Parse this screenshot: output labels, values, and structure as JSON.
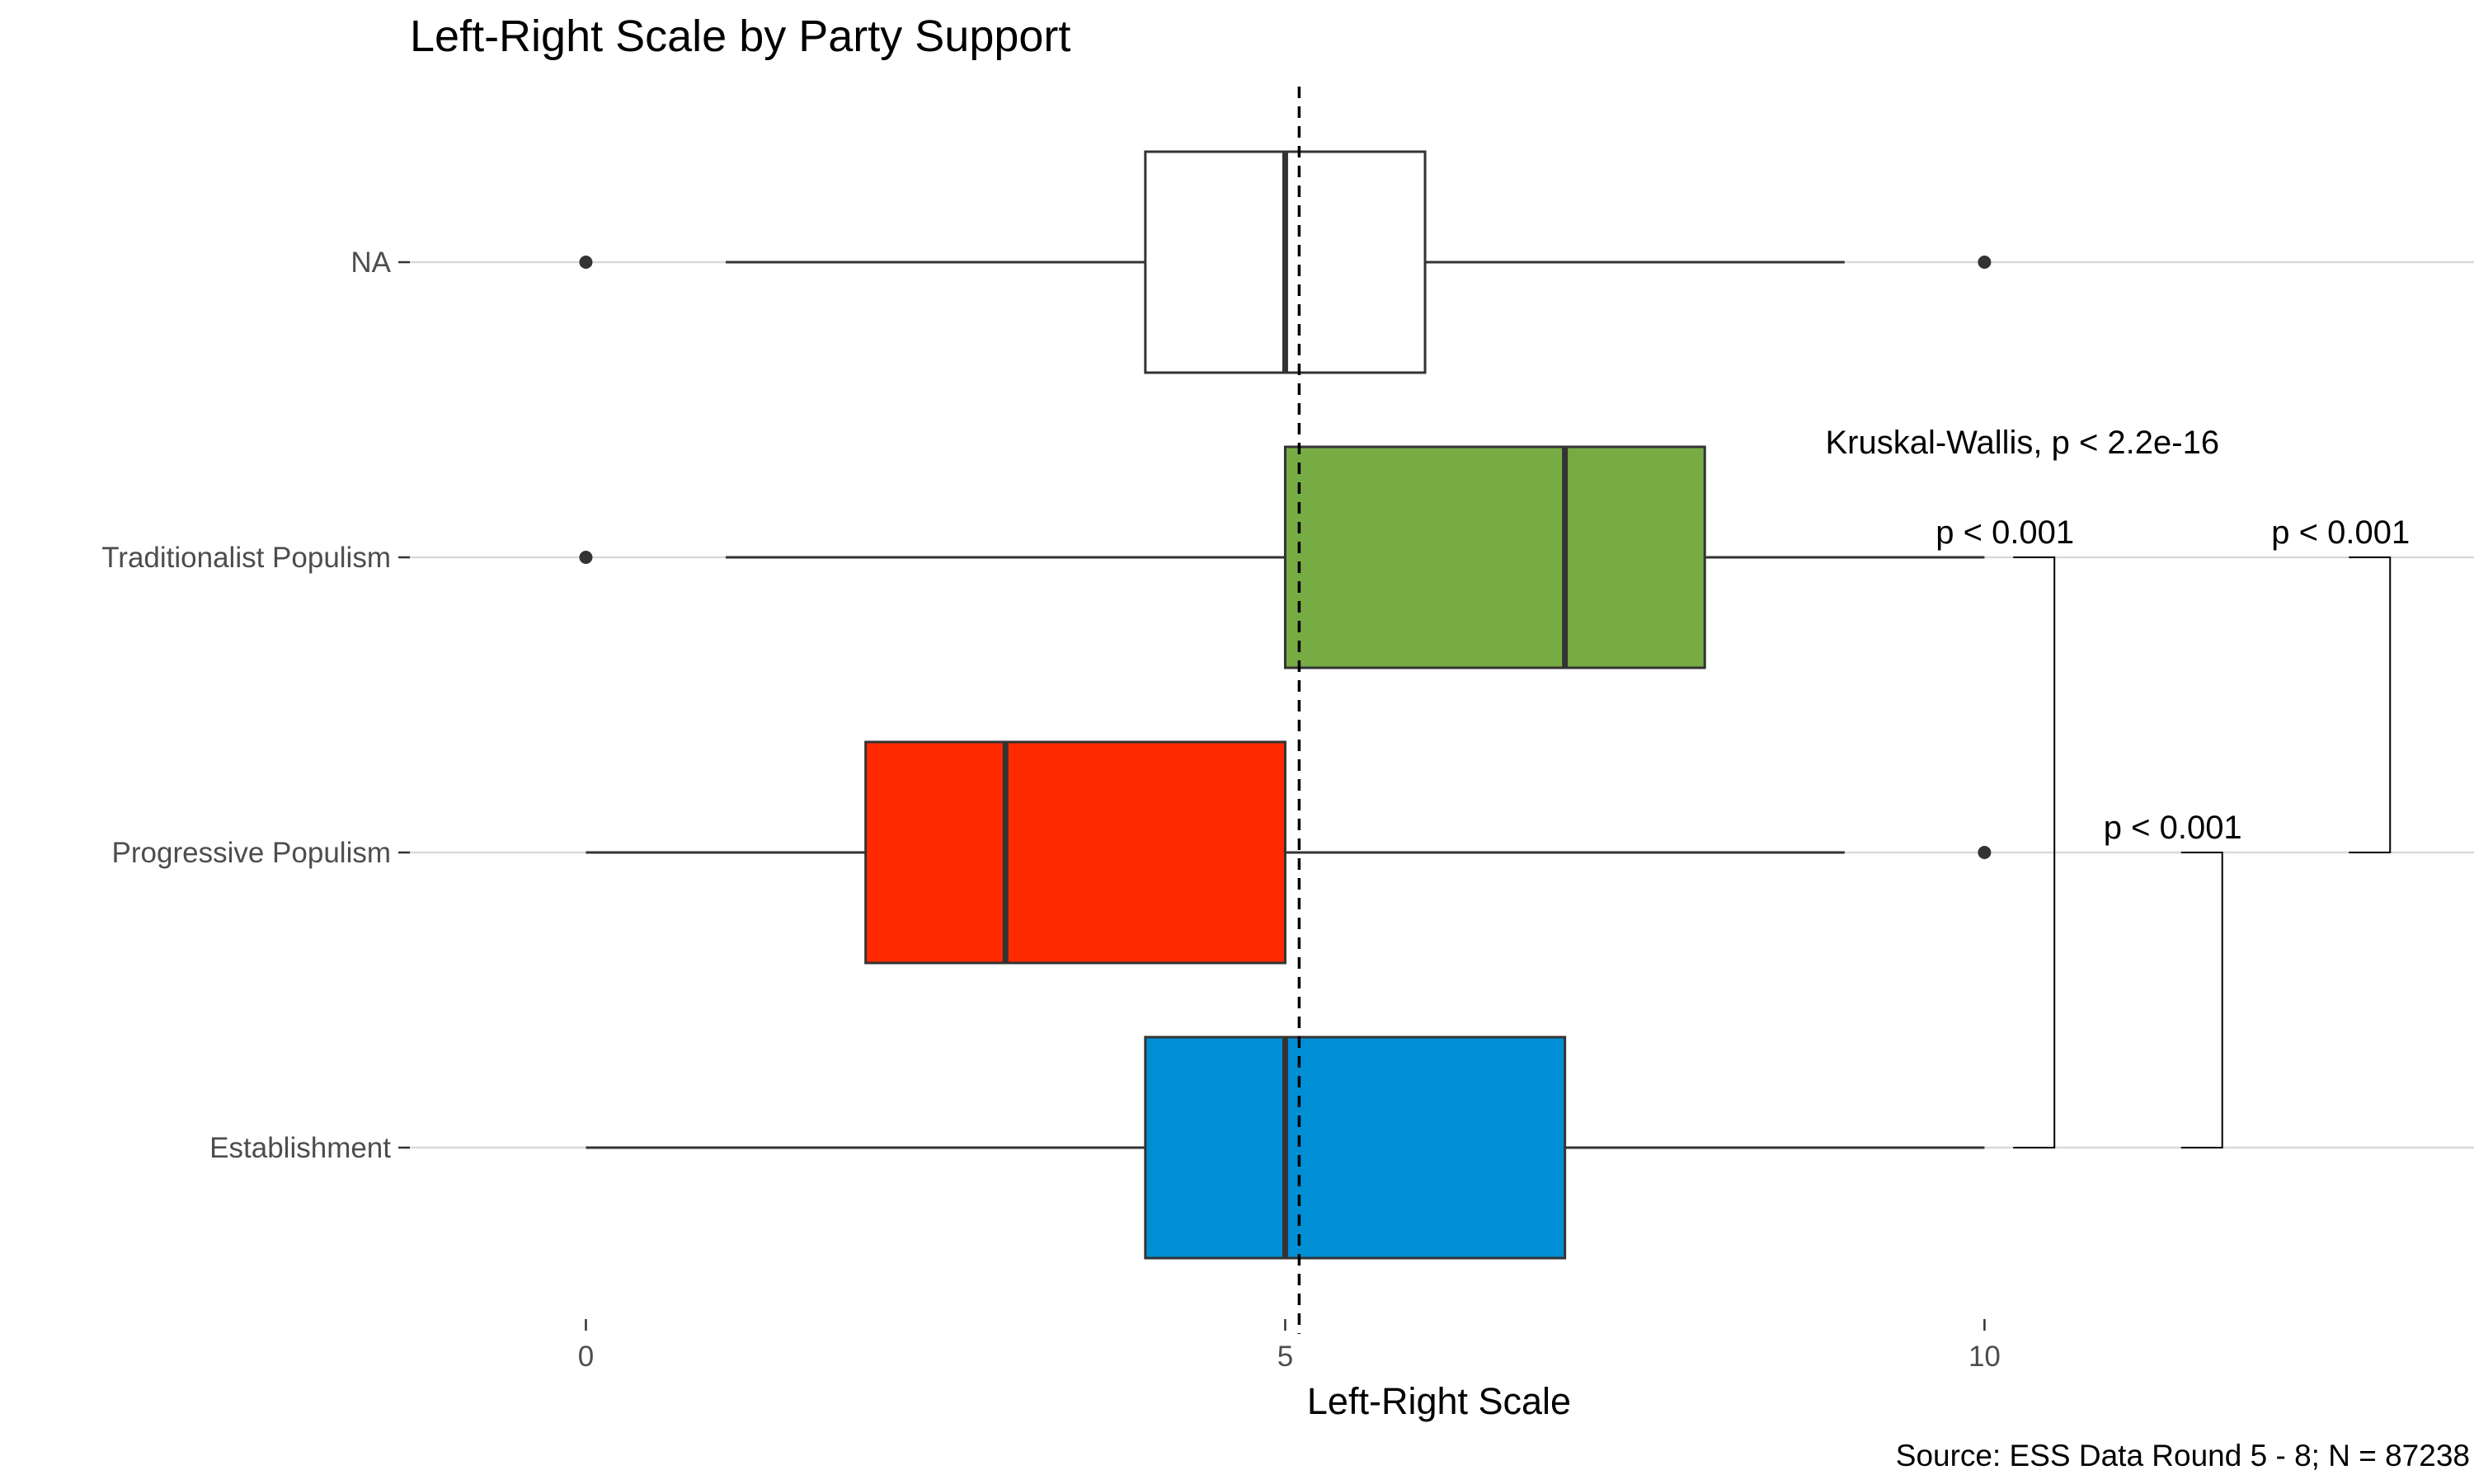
{
  "chart_data": {
    "type": "boxplot",
    "orientation": "horizontal",
    "title": "Left-Right Scale by Party Support",
    "xlabel": "Left-Right Scale",
    "ylabel": "",
    "caption": "Source: ESS Data Round 5 - 8; N = 87238",
    "xlim": [
      -1.3,
      13.5
    ],
    "xticks": [
      0,
      5,
      10
    ],
    "xtick_labels": [
      "0",
      "5",
      "10"
    ],
    "grid": "horizontal major lines at categories",
    "legend": "none",
    "reference_line": {
      "x": 5.1,
      "style": "dashed",
      "color": "#000000"
    },
    "categories": [
      "NA",
      "Traditionalist Populism",
      "Progressive Populism",
      "Establishment"
    ],
    "boxes": [
      {
        "category": "NA",
        "min": 1,
        "q1": 4,
        "median": 5,
        "q3": 6,
        "max": 9,
        "outliers": [
          0,
          10
        ],
        "fill": "#ffffff"
      },
      {
        "category": "Traditionalist Populism",
        "min": 1,
        "q1": 5,
        "median": 7,
        "q3": 8,
        "max": 10,
        "outliers": [
          0
        ],
        "fill": "#77ac44"
      },
      {
        "category": "Progressive Populism",
        "min": 0,
        "q1": 2,
        "median": 3,
        "q3": 5,
        "max": 9,
        "outliers": [
          10
        ],
        "fill": "#ff2a00"
      },
      {
        "category": "Establishment",
        "min": 0,
        "q1": 4,
        "median": 5,
        "q3": 7,
        "max": 10,
        "outliers": [],
        "fill": "#008fd5"
      }
    ],
    "annotations": [
      {
        "text": "Kruskal-Wallis, p < 2.2e-16",
        "x": 10.3,
        "category": "NA",
        "offset": "below"
      }
    ],
    "comparisons": [
      {
        "group1": "Establishment",
        "group2": "Traditionalist Populism",
        "label": "p < 0.001",
        "x": 10.5
      },
      {
        "group1": "Establishment",
        "group2": "Progressive Populism",
        "label": "p < 0.001",
        "x": 11.7
      },
      {
        "group1": "Progressive Populism",
        "group2": "Traditionalist Populism",
        "label": "p < 0.001",
        "x": 12.9
      }
    ],
    "colors": {
      "box_outline": "#333333",
      "grid": "#d9d9d9",
      "text": "#000000",
      "axis_text": "#4d4d4d"
    }
  }
}
